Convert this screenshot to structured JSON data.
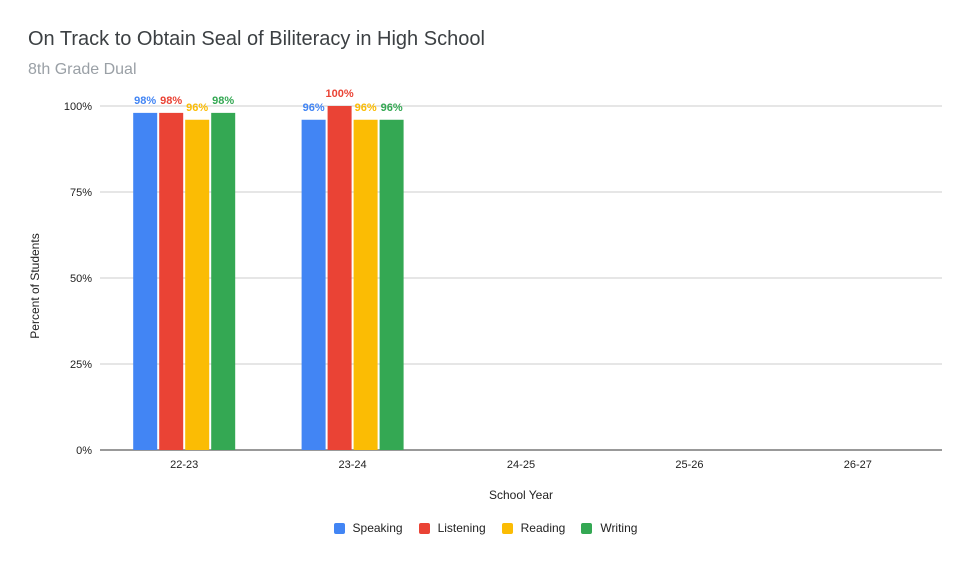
{
  "chart_data": {
    "type": "bar",
    "title": "On Track to Obtain Seal of Biliteracy in High School",
    "subtitle": "8th Grade Dual",
    "xlabel": "School Year",
    "ylabel": "Percent of Students",
    "categories": [
      "22-23",
      "23-24",
      "24-25",
      "25-26",
      "26-27"
    ],
    "ylim": [
      0,
      100
    ],
    "yticks": [
      "0%",
      "25%",
      "50%",
      "75%",
      "100%"
    ],
    "grid": true,
    "legend_position": "bottom",
    "series": [
      {
        "name": "Speaking",
        "color": "#4285f4",
        "values": [
          98,
          96,
          null,
          null,
          null
        ],
        "labels": [
          "98%",
          "96%",
          "",
          "",
          ""
        ]
      },
      {
        "name": "Listening",
        "color": "#ea4335",
        "values": [
          98,
          100,
          null,
          null,
          null
        ],
        "labels": [
          "98%",
          "100%",
          "",
          "",
          ""
        ]
      },
      {
        "name": "Reading",
        "color": "#fbbc04",
        "values": [
          96,
          96,
          null,
          null,
          null
        ],
        "labels": [
          "96%",
          "96%",
          "",
          "",
          ""
        ]
      },
      {
        "name": "Writing",
        "color": "#34a853",
        "values": [
          98,
          96,
          null,
          null,
          null
        ],
        "labels": [
          "98%",
          "96%",
          "",
          "",
          ""
        ]
      }
    ]
  }
}
